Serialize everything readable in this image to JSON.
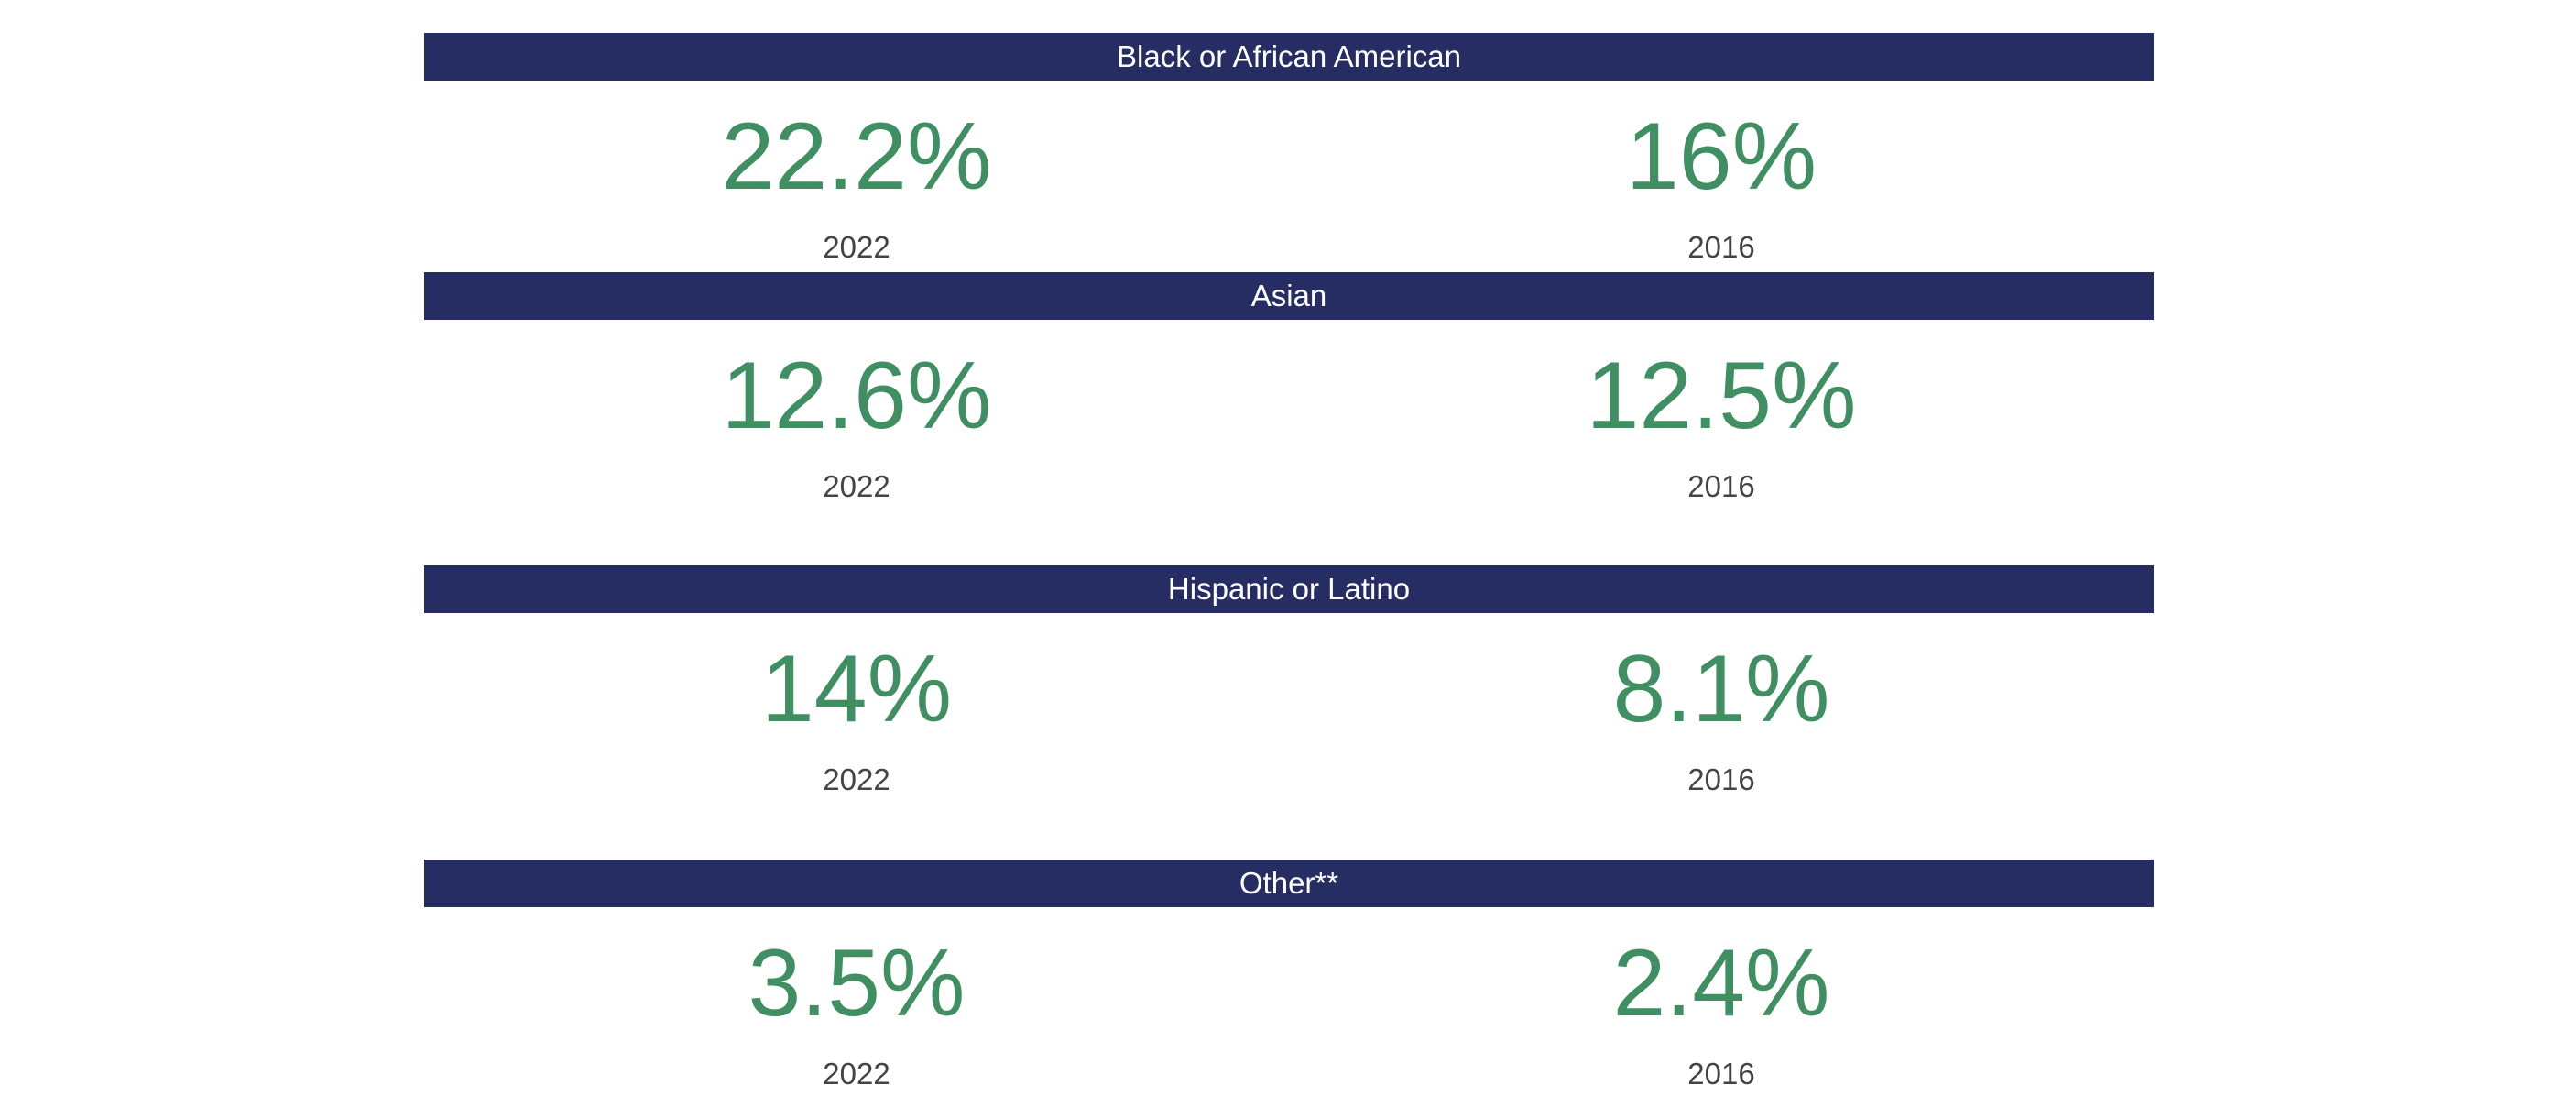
{
  "sections": [
    {
      "heading": "Black or African American",
      "stats": [
        {
          "value": "22.2%",
          "year": "2022"
        },
        {
          "value": "16%",
          "year": "2016"
        }
      ]
    },
    {
      "heading": "Asian",
      "stats": [
        {
          "value": "12.6%",
          "year": "2022"
        },
        {
          "value": "12.5%",
          "year": "2016"
        }
      ]
    },
    {
      "heading": "Hispanic or Latino",
      "stats": [
        {
          "value": "14%",
          "year": "2022"
        },
        {
          "value": "8.1%",
          "year": "2016"
        }
      ]
    },
    {
      "heading": "Other**",
      "stats": [
        {
          "value": "3.5%",
          "year": "2022"
        },
        {
          "value": "2.4%",
          "year": "2016"
        }
      ]
    }
  ]
}
